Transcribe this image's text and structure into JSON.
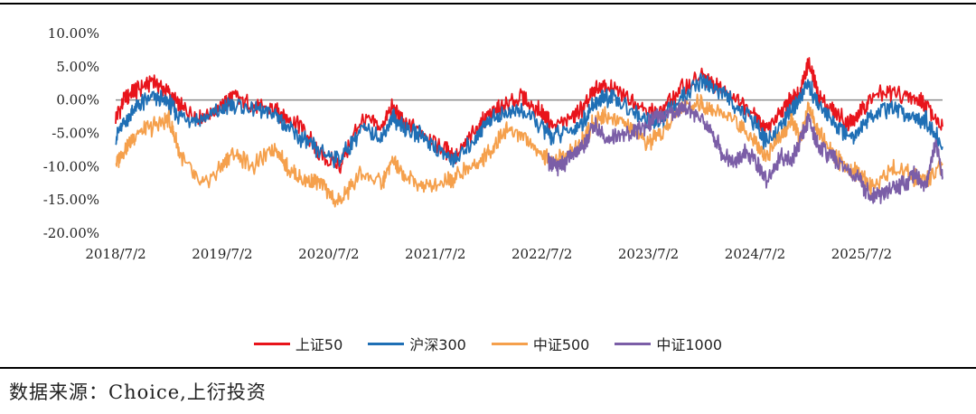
{
  "chart_data": {
    "type": "line",
    "ylim": [
      -20,
      10
    ],
    "yticks": [
      {
        "value": 10,
        "label": "10.00%"
      },
      {
        "value": 5,
        "label": "5.00%"
      },
      {
        "value": 0,
        "label": "0.00%"
      },
      {
        "value": -5,
        "label": "-5.00%"
      },
      {
        "value": -10,
        "label": "-10.00%"
      },
      {
        "value": -15,
        "label": "-15.00%"
      },
      {
        "value": -20,
        "label": "-20.00%"
      }
    ],
    "xlim": [
      2018.5,
      2026.26
    ],
    "xticks": [
      {
        "value": 2018.5,
        "label": "2018/7/2"
      },
      {
        "value": 2019.5,
        "label": "2019/7/2"
      },
      {
        "value": 2020.5,
        "label": "2020/7/2"
      },
      {
        "value": 2021.5,
        "label": "2021/7/2"
      },
      {
        "value": 2022.5,
        "label": "2022/7/2"
      },
      {
        "value": 2023.5,
        "label": "2023/7/2"
      },
      {
        "value": 2024.5,
        "label": "2024/7/2"
      },
      {
        "value": 2025.5,
        "label": "2025/7/2"
      }
    ],
    "legend_position": "bottom",
    "series": [
      {
        "name": "上证50",
        "color": "#e8141b",
        "x": [
          2018.5,
          2018.6,
          2018.7,
          2018.85,
          2019.0,
          2019.1,
          2019.3,
          2019.5,
          2019.6,
          2019.8,
          2020.0,
          2020.1,
          2020.25,
          2020.4,
          2020.6,
          2020.8,
          2021.0,
          2021.1,
          2021.2,
          2021.4,
          2021.6,
          2021.7,
          2021.9,
          2022.0,
          2022.15,
          2022.3,
          2022.5,
          2022.6,
          2022.8,
          2022.9,
          2023.0,
          2023.1,
          2023.3,
          2023.5,
          2023.6,
          2023.8,
          2024.0,
          2024.1,
          2024.3,
          2024.5,
          2024.6,
          2024.75,
          2024.85,
          2024.92,
          2025.0,
          2025.1,
          2025.25,
          2025.4,
          2025.5,
          2025.6,
          2025.8,
          2026.0,
          2026.1,
          2026.26
        ],
        "y": [
          -2.5,
          0.5,
          1.5,
          3.0,
          1.0,
          -1.0,
          -2.5,
          -1.0,
          0.5,
          -1.0,
          -1.5,
          -2.5,
          -4.0,
          -8.0,
          -10.0,
          -3.0,
          -4.0,
          -1.0,
          -3.5,
          -5.0,
          -7.5,
          -8.5,
          -4.0,
          -2.0,
          -1.0,
          0.5,
          -2.0,
          -4.0,
          -2.5,
          -1.0,
          1.5,
          2.0,
          0.5,
          -1.5,
          -2.0,
          1.5,
          3.5,
          2.5,
          0.5,
          -2.0,
          -4.5,
          -2.0,
          0.5,
          1.0,
          5.5,
          0.5,
          -2.0,
          -3.5,
          -1.5,
          0.5,
          1.0,
          0.0,
          -0.5,
          -4.0
        ]
      },
      {
        "name": "沪深300",
        "color": "#1f6fb5",
        "x": [
          2018.5,
          2018.6,
          2018.7,
          2018.85,
          2019.0,
          2019.1,
          2019.3,
          2019.5,
          2019.6,
          2019.8,
          2020.0,
          2020.1,
          2020.25,
          2020.4,
          2020.6,
          2020.8,
          2021.0,
          2021.1,
          2021.2,
          2021.4,
          2021.6,
          2021.7,
          2021.9,
          2022.0,
          2022.15,
          2022.3,
          2022.5,
          2022.6,
          2022.8,
          2022.9,
          2023.0,
          2023.1,
          2023.3,
          2023.5,
          2023.6,
          2023.8,
          2024.0,
          2024.1,
          2024.3,
          2024.5,
          2024.6,
          2024.75,
          2024.85,
          2024.92,
          2025.0,
          2025.1,
          2025.25,
          2025.4,
          2025.5,
          2025.6,
          2025.8,
          2026.0,
          2026.1,
          2026.26
        ],
        "y": [
          -5.5,
          -3.0,
          -1.0,
          0.5,
          -0.5,
          -2.5,
          -3.0,
          -1.5,
          -0.5,
          -1.5,
          -2.0,
          -4.0,
          -6.0,
          -7.5,
          -9.0,
          -4.5,
          -5.5,
          -2.5,
          -4.0,
          -5.5,
          -8.5,
          -9.0,
          -5.0,
          -3.0,
          -2.0,
          -1.5,
          -4.0,
          -5.5,
          -4.5,
          -3.0,
          -0.5,
          0.5,
          -1.0,
          -3.0,
          -3.5,
          0.0,
          3.0,
          2.0,
          -0.5,
          -3.5,
          -6.5,
          -4.0,
          -1.0,
          0.0,
          2.5,
          -1.0,
          -3.5,
          -5.5,
          -4.0,
          -2.0,
          -1.5,
          -2.5,
          -3.0,
          -7.0
        ]
      },
      {
        "name": "中证500",
        "color": "#f5a04c",
        "x": [
          2018.5,
          2018.6,
          2018.7,
          2018.85,
          2019.0,
          2019.1,
          2019.3,
          2019.5,
          2019.6,
          2019.8,
          2020.0,
          2020.1,
          2020.25,
          2020.4,
          2020.6,
          2020.8,
          2021.0,
          2021.1,
          2021.2,
          2021.4,
          2021.6,
          2021.7,
          2021.9,
          2022.0,
          2022.15,
          2022.3,
          2022.5,
          2022.6,
          2022.8,
          2022.9,
          2023.0,
          2023.1,
          2023.3,
          2023.5,
          2023.6,
          2023.8,
          2024.0,
          2024.1,
          2024.3,
          2024.5,
          2024.6,
          2024.75,
          2024.85,
          2024.92,
          2025.0,
          2025.1,
          2025.25,
          2025.4,
          2025.5,
          2025.6,
          2025.8,
          2026.0,
          2026.1,
          2026.26
        ],
        "y": [
          -9.5,
          -7.0,
          -5.0,
          -4.0,
          -3.0,
          -8.0,
          -13.0,
          -10.0,
          -8.0,
          -10.0,
          -7.0,
          -10.0,
          -12.0,
          -12.5,
          -15.5,
          -11.0,
          -12.5,
          -9.0,
          -11.5,
          -13.0,
          -12.0,
          -11.5,
          -9.5,
          -8.0,
          -4.5,
          -5.0,
          -8.0,
          -9.5,
          -7.5,
          -5.5,
          -3.0,
          -2.0,
          -4.0,
          -6.5,
          -5.5,
          -1.0,
          -0.5,
          -1.5,
          -3.0,
          -6.0,
          -8.5,
          -5.5,
          -3.0,
          -6.0,
          -1.0,
          -5.0,
          -8.5,
          -10.5,
          -11.5,
          -13.0,
          -10.0,
          -11.5,
          -12.0,
          -9.5
        ]
      },
      {
        "name": "中证1000",
        "color": "#7b5ea7",
        "x": [
          2022.56,
          2022.62,
          2022.7,
          2022.8,
          2022.9,
          2023.0,
          2023.1,
          2023.2,
          2023.35,
          2023.5,
          2023.6,
          2023.75,
          2023.85,
          2024.0,
          2024.1,
          2024.2,
          2024.3,
          2024.4,
          2024.5,
          2024.6,
          2024.75,
          2024.85,
          2024.92,
          2025.0,
          2025.1,
          2025.25,
          2025.4,
          2025.5,
          2025.6,
          2025.7,
          2025.8,
          2025.9,
          2026.0,
          2026.1,
          2026.2,
          2026.26
        ],
        "y": [
          -9.0,
          -10.0,
          -9.5,
          -8.0,
          -6.5,
          -3.5,
          -6.0,
          -5.5,
          -5.0,
          -3.5,
          -2.5,
          -2.0,
          -1.0,
          -3.0,
          -5.0,
          -8.0,
          -9.5,
          -8.0,
          -9.0,
          -12.0,
          -8.5,
          -9.0,
          -6.0,
          -3.0,
          -7.0,
          -9.0,
          -11.0,
          -12.5,
          -14.5,
          -14.0,
          -13.0,
          -12.5,
          -11.0,
          -13.0,
          -6.5,
          -11.5
        ]
      }
    ]
  },
  "source_text": "数据来源：Choice,上衍投资"
}
